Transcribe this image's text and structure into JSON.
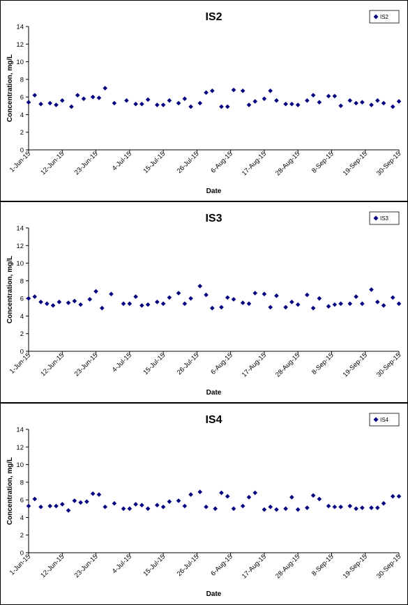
{
  "chart_data": [
    {
      "type": "scatter",
      "title": "IS2",
      "xlabel": "Date",
      "ylabel": "Concentration, mg/L",
      "ylim": [
        0,
        14
      ],
      "yticks": [
        "0",
        "2",
        "4",
        "6",
        "8",
        "10",
        "12",
        "14"
      ],
      "xticks": [
        "1-Jun-15",
        "12-Jun-15",
        "23-Jun-15",
        "4-Jul-15",
        "15-Jul-15",
        "26-Jul-15",
        "6-Aug-15",
        "17-Aug-15",
        "28-Aug-15",
        "8-Sep-15",
        "19-Sep-15",
        "30-Sep-15"
      ],
      "legend_position": "top-right",
      "color": "#00007f",
      "series": [
        {
          "name": "IS2",
          "x": [
            "1-Jun-15",
            "3-Jun-15",
            "5-Jun-15",
            "8-Jun-15",
            "10-Jun-15",
            "12-Jun-15",
            "15-Jun-15",
            "17-Jun-15",
            "19-Jun-15",
            "22-Jun-15",
            "24-Jun-15",
            "26-Jun-15",
            "29-Jun-15",
            "3-Jul-15",
            "6-Jul-15",
            "8-Jul-15",
            "10-Jul-15",
            "13-Jul-15",
            "15-Jul-15",
            "17-Jul-15",
            "20-Jul-15",
            "22-Jul-15",
            "24-Jul-15",
            "27-Jul-15",
            "29-Jul-15",
            "31-Jul-15",
            "3-Aug-15",
            "5-Aug-15",
            "7-Aug-15",
            "10-Aug-15",
            "12-Aug-15",
            "14-Aug-15",
            "17-Aug-15",
            "19-Aug-15",
            "21-Aug-15",
            "24-Aug-15",
            "26-Aug-15",
            "28-Aug-15",
            "31-Aug-15",
            "2-Sep-15",
            "4-Sep-15",
            "7-Sep-15",
            "9-Sep-15",
            "11-Sep-15",
            "14-Sep-15",
            "16-Sep-15",
            "18-Sep-15",
            "21-Sep-15",
            "23-Sep-15",
            "25-Sep-15",
            "28-Sep-15",
            "30-Sep-15"
          ],
          "y": [
            5.4,
            6.2,
            5.2,
            5.3,
            5.1,
            5.6,
            4.9,
            6.2,
            5.8,
            6.0,
            5.9,
            7.0,
            5.3,
            5.6,
            5.2,
            5.2,
            5.7,
            5.1,
            5.1,
            5.6,
            5.3,
            5.8,
            4.9,
            5.3,
            6.5,
            6.7,
            4.9,
            4.9,
            6.8,
            6.7,
            5.1,
            5.5,
            5.8,
            6.7,
            5.6,
            5.2,
            5.2,
            5.1,
            5.6,
            6.2,
            5.4,
            6.1,
            6.1,
            5.0,
            5.6,
            5.3,
            5.4,
            5.1,
            5.6,
            5.3,
            4.9,
            5.5
          ]
        }
      ]
    },
    {
      "type": "scatter",
      "title": "IS3",
      "xlabel": "Date",
      "ylabel": "Concentration, mg/L",
      "ylim": [
        0,
        14
      ],
      "yticks": [
        "0",
        "2",
        "4",
        "6",
        "8",
        "10",
        "12",
        "14"
      ],
      "xticks": [
        "1-Jun-15",
        "12-Jun-15",
        "23-Jun-15",
        "4-Jul-15",
        "15-Jul-15",
        "26-Jul-15",
        "6-Aug-15",
        "17-Aug-15",
        "28-Aug-15",
        "8-Sep-15",
        "19-Sep-15",
        "30-Sep-15"
      ],
      "legend_position": "top-right",
      "color": "#00007f",
      "series": [
        {
          "name": "IS3",
          "x": [
            "1-Jun-15",
            "3-Jun-15",
            "5-Jun-15",
            "7-Jun-15",
            "9-Jun-15",
            "11-Jun-15",
            "14-Jun-15",
            "16-Jun-15",
            "18-Jun-15",
            "21-Jun-15",
            "23-Jun-15",
            "25-Jun-15",
            "28-Jun-15",
            "2-Jul-15",
            "4-Jul-15",
            "6-Jul-15",
            "8-Jul-15",
            "10-Jul-15",
            "13-Jul-15",
            "15-Jul-15",
            "17-Jul-15",
            "20-Jul-15",
            "22-Jul-15",
            "24-Jul-15",
            "27-Jul-15",
            "29-Jul-15",
            "31-Jul-15",
            "3-Aug-15",
            "5-Aug-15",
            "7-Aug-15",
            "10-Aug-15",
            "12-Aug-15",
            "14-Aug-15",
            "17-Aug-15",
            "19-Aug-15",
            "21-Aug-15",
            "24-Aug-15",
            "26-Aug-15",
            "28-Aug-15",
            "31-Aug-15",
            "2-Sep-15",
            "4-Sep-15",
            "7-Sep-15",
            "9-Sep-15",
            "11-Sep-15",
            "14-Sep-15",
            "16-Sep-15",
            "18-Sep-15",
            "21-Sep-15",
            "23-Sep-15",
            "25-Sep-15",
            "28-Sep-15",
            "30-Sep-15"
          ],
          "y": [
            6.0,
            6.2,
            5.6,
            5.4,
            5.2,
            5.6,
            5.5,
            5.7,
            5.3,
            5.9,
            6.8,
            4.9,
            6.5,
            5.4,
            5.4,
            6.2,
            5.2,
            5.3,
            5.6,
            5.4,
            6.1,
            6.6,
            5.4,
            6.0,
            7.4,
            6.4,
            4.9,
            5.0,
            6.1,
            5.9,
            5.5,
            5.4,
            6.6,
            6.5,
            5.0,
            6.3,
            5.0,
            5.6,
            5.3,
            6.4,
            4.9,
            6.0,
            5.1,
            5.3,
            5.4,
            5.4,
            6.2,
            5.4,
            7.0,
            5.6,
            5.2,
            6.1,
            5.4
          ]
        }
      ]
    },
    {
      "type": "scatter",
      "title": "IS4",
      "xlabel": "Date",
      "ylabel": "Concentration, mg/L",
      "ylim": [
        0,
        14
      ],
      "yticks": [
        "0",
        "2",
        "4",
        "6",
        "8",
        "10",
        "12",
        "14"
      ],
      "xticks": [
        "1-Jun-15",
        "12-Jun-15",
        "23-Jun-15",
        "4-Jul-15",
        "15-Jul-15",
        "26-Jul-15",
        "6-Aug-15",
        "17-Aug-15",
        "28-Aug-15",
        "8-Sep-15",
        "19-Sep-15",
        "30-Sep-15"
      ],
      "legend_position": "top-right",
      "color": "#00007f",
      "series": [
        {
          "name": "IS4",
          "x": [
            "1-Jun-15",
            "3-Jun-15",
            "5-Jun-15",
            "8-Jun-15",
            "10-Jun-15",
            "12-Jun-15",
            "14-Jun-15",
            "16-Jun-15",
            "18-Jun-15",
            "20-Jun-15",
            "22-Jun-15",
            "24-Jun-15",
            "26-Jun-15",
            "29-Jun-15",
            "2-Jul-15",
            "4-Jul-15",
            "6-Jul-15",
            "8-Jul-15",
            "10-Jul-15",
            "13-Jul-15",
            "15-Jul-15",
            "17-Jul-15",
            "20-Jul-15",
            "22-Jul-15",
            "24-Jul-15",
            "27-Jul-15",
            "29-Jul-15",
            "1-Aug-15",
            "3-Aug-15",
            "5-Aug-15",
            "7-Aug-15",
            "10-Aug-15",
            "12-Aug-15",
            "14-Aug-15",
            "17-Aug-15",
            "19-Aug-15",
            "21-Aug-15",
            "24-Aug-15",
            "26-Aug-15",
            "28-Aug-15",
            "31-Aug-15",
            "2-Sep-15",
            "4-Sep-15",
            "7-Sep-15",
            "9-Sep-15",
            "11-Sep-15",
            "14-Sep-15",
            "16-Sep-15",
            "18-Sep-15",
            "21-Sep-15",
            "23-Sep-15",
            "25-Sep-15",
            "28-Sep-15",
            "30-Sep-15"
          ],
          "y": [
            5.3,
            6.1,
            5.2,
            5.3,
            5.3,
            5.5,
            4.8,
            5.9,
            5.7,
            5.8,
            6.7,
            6.6,
            5.2,
            5.6,
            5.0,
            5.0,
            5.5,
            5.4,
            5.0,
            5.4,
            5.2,
            5.8,
            5.9,
            5.3,
            6.6,
            6.9,
            5.2,
            5.0,
            6.8,
            6.4,
            5.0,
            5.3,
            6.3,
            6.8,
            4.9,
            5.2,
            4.9,
            5.0,
            6.3,
            4.9,
            5.1,
            6.5,
            6.1,
            5.3,
            5.2,
            5.2,
            5.3,
            5.0,
            5.1,
            5.1,
            5.1,
            5.6,
            6.4,
            6.4
          ]
        }
      ]
    }
  ]
}
